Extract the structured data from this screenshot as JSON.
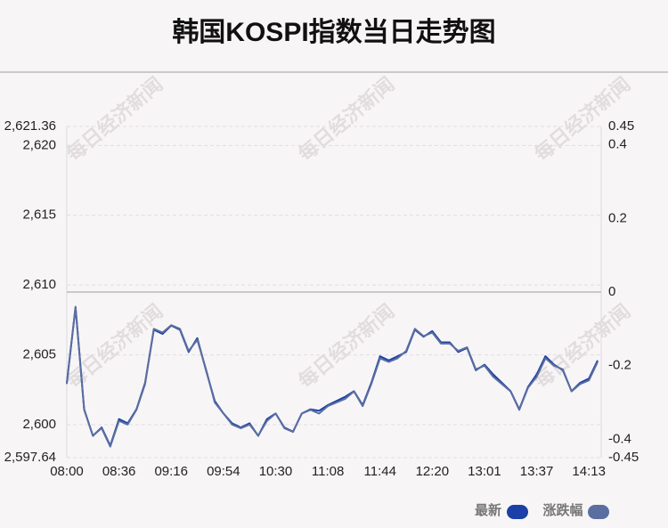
{
  "chart_data": {
    "type": "line",
    "title": "韩国KOSPI指数当日走势图",
    "watermark": "每日经济新闻",
    "categories": [
      "08:00",
      null,
      null,
      null,
      null,
      null,
      "08:36",
      null,
      null,
      null,
      null,
      null,
      "09:16",
      null,
      null,
      null,
      null,
      null,
      "09:54",
      null,
      null,
      null,
      null,
      null,
      "10:30",
      null,
      null,
      null,
      null,
      null,
      "11:08",
      null,
      null,
      null,
      null,
      null,
      "11:44",
      null,
      null,
      null,
      null,
      null,
      "12:20",
      null,
      null,
      null,
      null,
      null,
      "13:01",
      null,
      null,
      null,
      null,
      null,
      "13:37",
      null,
      null,
      null,
      null,
      null,
      "14:13",
      null
    ],
    "series": [
      {
        "name": "最新",
        "color": "#1a3fa6",
        "values": [
          2603.0,
          2608.4,
          2601.1,
          2599.2,
          2599.8,
          2598.5,
          2600.4,
          2600.1,
          2601.1,
          2603.0,
          2606.8,
          2606.5,
          2607.1,
          2606.8,
          2605.2,
          2606.2,
          2603.9,
          2601.7,
          2600.8,
          2600.1,
          2599.8,
          2600.1,
          2599.2,
          2600.4,
          2600.8,
          2599.8,
          2599.5,
          2600.8,
          2601.1,
          2601.0,
          2601.4,
          2601.7,
          2602.0,
          2602.4,
          2601.4,
          2603.0,
          2604.9,
          2604.6,
          2604.9,
          2605.2,
          2606.8,
          2606.3,
          2606.7,
          2605.9,
          2605.9,
          2605.2,
          2605.5,
          2603.9,
          2604.3,
          2603.6,
          2603.0,
          2602.4,
          2601.1,
          2602.7,
          2603.6,
          2604.9,
          2604.3,
          2603.9,
          2602.4,
          2603.0,
          2603.3,
          2604.6
        ]
      },
      {
        "name": "涨跌幅",
        "color": "#5a6e9f",
        "axis": "y2",
        "values": [
          -0.25,
          -0.04,
          -0.32,
          -0.39,
          -0.37,
          -0.42,
          -0.35,
          -0.36,
          -0.32,
          -0.25,
          -0.1,
          -0.11,
          -0.09,
          -0.1,
          -0.16,
          -0.13,
          -0.21,
          -0.3,
          -0.33,
          -0.36,
          -0.37,
          -0.36,
          -0.39,
          -0.35,
          -0.33,
          -0.37,
          -0.38,
          -0.33,
          -0.32,
          -0.33,
          -0.31,
          -0.3,
          -0.29,
          -0.27,
          -0.31,
          -0.25,
          -0.18,
          -0.19,
          -0.18,
          -0.16,
          -0.1,
          -0.12,
          -0.11,
          -0.14,
          -0.14,
          -0.16,
          -0.15,
          -0.21,
          -0.2,
          -0.23,
          -0.25,
          -0.27,
          -0.32,
          -0.26,
          -0.23,
          -0.18,
          -0.2,
          -0.21,
          -0.27,
          -0.25,
          -0.24,
          -0.19
        ]
      }
    ],
    "ylim": [
      2597.64,
      2621.36
    ],
    "yticks": [
      {
        "value": 2597.64,
        "label": "2,597.64"
      },
      {
        "value": 2600,
        "label": "2,600"
      },
      {
        "value": 2605,
        "label": "2,605"
      },
      {
        "value": 2610,
        "label": "2,610"
      },
      {
        "value": 2615,
        "label": "2,615"
      },
      {
        "value": 2620,
        "label": "2,620"
      },
      {
        "value": 2621.36,
        "label": "2,621.36"
      }
    ],
    "y2lim": [
      -0.45,
      0.45
    ],
    "y2ticks": [
      -0.45,
      -0.4,
      -0.2,
      0,
      0.2,
      0.4,
      0.45
    ],
    "grid": true
  }
}
